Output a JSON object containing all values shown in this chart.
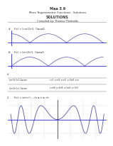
{
  "title_line1": "Maa 3.9",
  "title_line2": "More Trigonometric Functions - Solutions",
  "title_line3": "SOLUTIONS",
  "title_line4": "Compiled by: Thomas Thiebolds",
  "bg_color": "#ffffff",
  "separator_color": "#aaaaaa",
  "wave_color": "#5555aa",
  "axis_color": "#0000cc",
  "grid_color": "#aaaacc",
  "text_color": "#333333",
  "table_color": "#666666"
}
